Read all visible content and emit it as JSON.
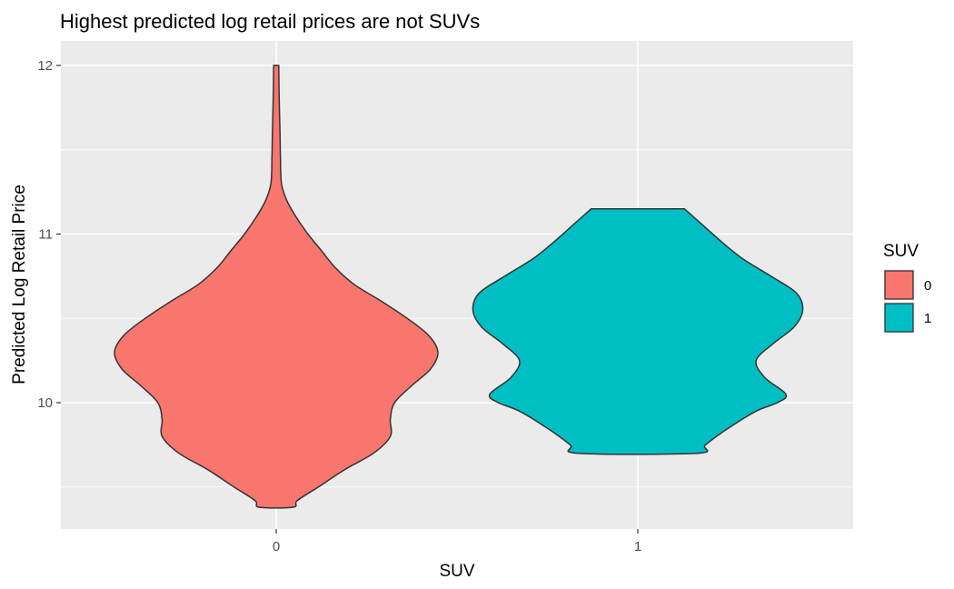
{
  "chart_data": {
    "type": "violin",
    "title": "Highest predicted log retail prices are not SUVs",
    "xlabel": "SUV",
    "ylabel": "Predicted Log Retail Price",
    "categories": [
      "0",
      "1"
    ],
    "y_ticks": [
      10,
      11,
      12
    ],
    "y_tick_labels": [
      "10",
      "11",
      "12"
    ],
    "ylim": [
      9.3,
      12.1
    ],
    "grid": true,
    "legend": {
      "title": "SUV",
      "position": "right",
      "entries": [
        {
          "label": "0",
          "color": "#F8766D"
        },
        {
          "label": "1",
          "color": "#00BFC4"
        }
      ]
    },
    "violins": [
      {
        "category": "0",
        "color": "#F8766D",
        "min": 9.38,
        "max": 12.0,
        "density_profile": [
          [
            12.0,
            0.012
          ],
          [
            11.8,
            0.014
          ],
          [
            11.6,
            0.018
          ],
          [
            11.45,
            0.02
          ],
          [
            11.3,
            0.025
          ],
          [
            11.2,
            0.05
          ],
          [
            11.1,
            0.095
          ],
          [
            11.0,
            0.15
          ],
          [
            10.9,
            0.215
          ],
          [
            10.8,
            0.28
          ],
          [
            10.7,
            0.37
          ],
          [
            10.6,
            0.5
          ],
          [
            10.5,
            0.62
          ],
          [
            10.4,
            0.72
          ],
          [
            10.3,
            0.765
          ],
          [
            10.2,
            0.73
          ],
          [
            10.1,
            0.64
          ],
          [
            10.0,
            0.56
          ],
          [
            9.9,
            0.54
          ],
          [
            9.8,
            0.54
          ],
          [
            9.7,
            0.46
          ],
          [
            9.6,
            0.32
          ],
          [
            9.5,
            0.2
          ],
          [
            9.42,
            0.1
          ],
          [
            9.38,
            0.08
          ]
        ]
      },
      {
        "category": "1",
        "color": "#00BFC4",
        "min": 9.7,
        "max": 11.15,
        "density_profile": [
          [
            11.15,
            0.22
          ],
          [
            11.05,
            0.31
          ],
          [
            10.95,
            0.4
          ],
          [
            10.85,
            0.5
          ],
          [
            10.75,
            0.63
          ],
          [
            10.65,
            0.75
          ],
          [
            10.55,
            0.78
          ],
          [
            10.45,
            0.74
          ],
          [
            10.35,
            0.64
          ],
          [
            10.25,
            0.56
          ],
          [
            10.15,
            0.6
          ],
          [
            10.05,
            0.7
          ],
          [
            10.0,
            0.66
          ],
          [
            9.95,
            0.56
          ],
          [
            9.85,
            0.43
          ],
          [
            9.75,
            0.32
          ],
          [
            9.7,
            0.28
          ]
        ]
      }
    ]
  }
}
